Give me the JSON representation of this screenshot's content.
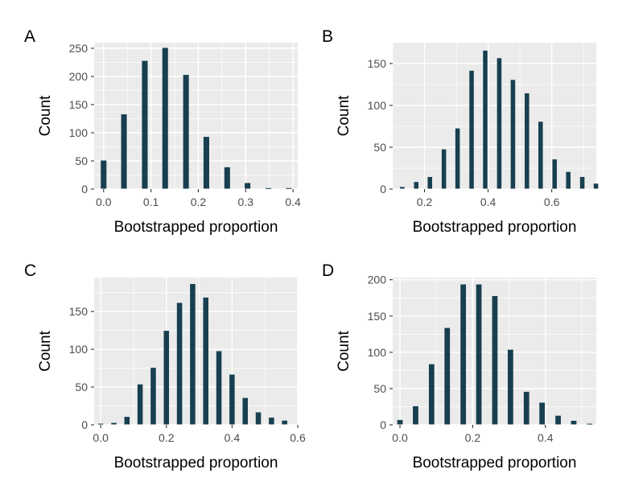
{
  "chart_data": [
    {
      "panel": "A",
      "type": "bar",
      "xlabel": "Bootstrapped proportion",
      "ylabel": "Count",
      "xlim": [
        -0.02,
        0.41
      ],
      "ylim": [
        0,
        260
      ],
      "xticks": [
        0.0,
        0.1,
        0.2,
        0.3,
        0.4
      ],
      "xtick_labels": [
        "0.0",
        "0.1",
        "0.2",
        "0.3",
        "0.4"
      ],
      "yticks": [
        0,
        50,
        100,
        150,
        200,
        250
      ],
      "bar_width": 0.012,
      "grid": true,
      "bar_color": "#173F50",
      "x": [
        0.0,
        0.043,
        0.087,
        0.13,
        0.174,
        0.217,
        0.261,
        0.304,
        0.348,
        0.391
      ],
      "values": [
        50,
        132,
        227,
        250,
        202,
        92,
        38,
        10,
        1,
        1
      ]
    },
    {
      "panel": "B",
      "type": "bar",
      "xlabel": "Bootstrapped proportion",
      "ylabel": "Count",
      "xlim": [
        0.1,
        0.74
      ],
      "ylim": [
        0,
        175
      ],
      "xticks": [
        0.2,
        0.4,
        0.6
      ],
      "xtick_labels": [
        "0.2",
        "0.4",
        "0.6"
      ],
      "yticks": [
        0,
        50,
        100,
        150
      ],
      "bar_width": 0.014,
      "grid": true,
      "bar_color": "#173F50",
      "x": [
        0.13,
        0.174,
        0.217,
        0.261,
        0.304,
        0.348,
        0.391,
        0.435,
        0.478,
        0.522,
        0.565,
        0.609,
        0.652,
        0.696,
        0.739
      ],
      "values": [
        2,
        8,
        14,
        47,
        72,
        141,
        165,
        156,
        130,
        114,
        80,
        35,
        20,
        14,
        6
      ]
    },
    {
      "panel": "C",
      "type": "bar",
      "xlabel": "Bootstrapped proportion",
      "ylabel": "Count",
      "xlim": [
        -0.02,
        0.6
      ],
      "ylim": [
        0,
        195
      ],
      "xticks": [
        0.0,
        0.2,
        0.4,
        0.6
      ],
      "xtick_labels": [
        "0.0",
        "0.2",
        "0.4",
        "0.6"
      ],
      "yticks": [
        0,
        50,
        100,
        150
      ],
      "bar_width": 0.016,
      "grid": true,
      "bar_color": "#173F50",
      "x": [
        0.0,
        0.04,
        0.08,
        0.12,
        0.16,
        0.2,
        0.24,
        0.28,
        0.32,
        0.36,
        0.4,
        0.44,
        0.48,
        0.52,
        0.56
      ],
      "values": [
        1,
        2,
        10,
        53,
        75,
        124,
        161,
        186,
        168,
        97,
        66,
        35,
        16,
        9,
        5
      ]
    },
    {
      "panel": "D",
      "type": "bar",
      "xlabel": "Bootstrapped proportion",
      "ylabel": "Count",
      "xlim": [
        -0.02,
        0.54
      ],
      "ylim": [
        0,
        203
      ],
      "xticks": [
        0.0,
        0.2,
        0.4
      ],
      "xtick_labels": [
        "0.0",
        "0.2",
        "0.4"
      ],
      "yticks": [
        0,
        50,
        100,
        150,
        200
      ],
      "bar_width": 0.015,
      "grid": true,
      "bar_color": "#173F50",
      "x": [
        0.0,
        0.043,
        0.087,
        0.13,
        0.174,
        0.217,
        0.261,
        0.304,
        0.348,
        0.391,
        0.435,
        0.478,
        0.522
      ],
      "values": [
        6,
        25,
        83,
        133,
        193,
        193,
        177,
        103,
        45,
        30,
        12,
        5,
        1
      ]
    }
  ]
}
